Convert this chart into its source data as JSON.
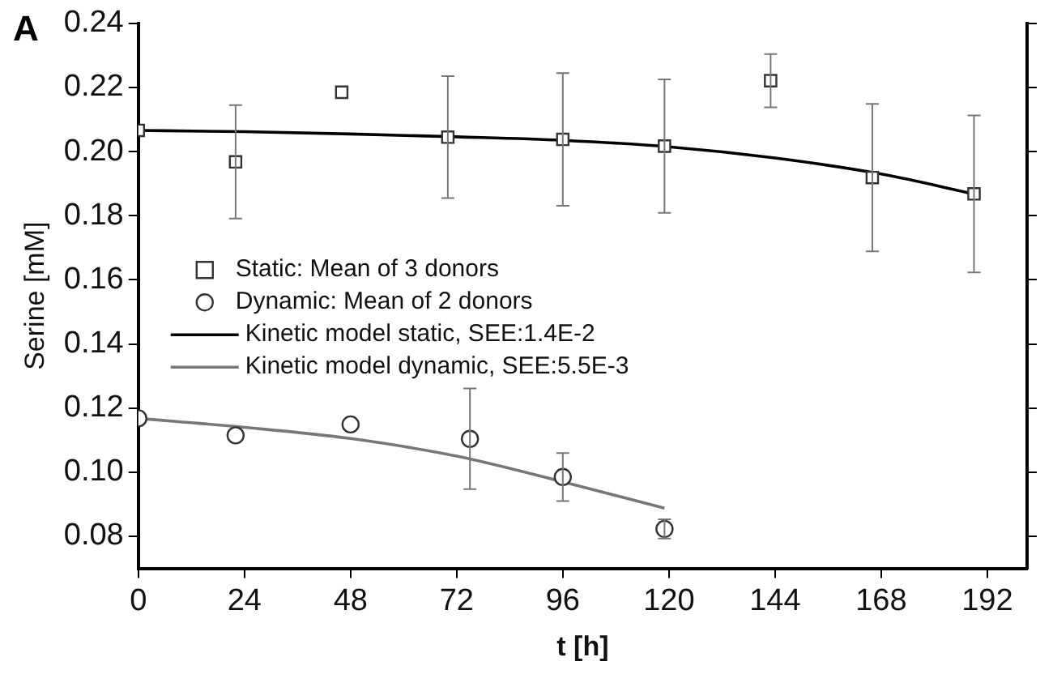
{
  "chart_data": {
    "type": "scatter",
    "title": "A",
    "xlabel": "t [h]",
    "ylabel": "Serine [mM]",
    "xlim": [
      0,
      201
    ],
    "xticks": [
      0,
      24,
      48,
      72,
      96,
      120,
      144,
      168,
      192
    ],
    "ylim": [
      0.07,
      0.24
    ],
    "yticks": [
      0.08,
      {
        "value": 0.1,
        "label": "0.10"
      },
      0.12,
      0.14,
      0.16,
      0.18,
      {
        "value": 0.2,
        "label": "0.20"
      },
      0.22,
      0.24
    ],
    "grid": false,
    "legend": "center left",
    "series": [
      {
        "name": "Static: Mean of 3 donors",
        "marker": "square",
        "color": "#333333",
        "x": [
          0,
          22,
          46,
          70,
          96,
          119,
          143,
          166,
          189
        ],
        "values": [
          0.2066,
          0.1968,
          0.2185,
          0.2045,
          0.2038,
          0.2017,
          0.2221,
          0.1919,
          0.1868
        ],
        "errors": [
          null,
          0.0177,
          null,
          0.019,
          0.0207,
          0.0208,
          0.0083,
          0.023,
          0.0245
        ]
      },
      {
        "name": "Dynamic: Mean of 2 donors",
        "marker": "circle",
        "color": "#333333",
        "x": [
          0,
          22,
          48,
          75,
          96,
          119
        ],
        "values": [
          0.1168,
          0.1115,
          0.1149,
          0.1104,
          0.0985,
          0.0823
        ],
        "errors": [
          null,
          null,
          null,
          0.0157,
          0.0075,
          0.003
        ]
      },
      {
        "name": "Kinetic model static, SEE:1.4E-2",
        "type": "line",
        "marker": "none",
        "color": "#000000",
        "x": [
          0,
          24,
          48,
          72,
          96,
          120,
          144,
          168,
          189
        ],
        "values": [
          0.2066,
          0.2062,
          0.2055,
          0.2046,
          0.2035,
          0.2015,
          0.198,
          0.193,
          0.1868
        ]
      },
      {
        "name": "Kinetic model dynamic, SEE:5.5E-3",
        "type": "line",
        "marker": "none",
        "color": "#777777",
        "x": [
          0,
          24,
          48,
          72,
          96,
          119
        ],
        "values": [
          0.1168,
          0.114,
          0.1105,
          0.105,
          0.097,
          0.0888
        ]
      }
    ]
  }
}
